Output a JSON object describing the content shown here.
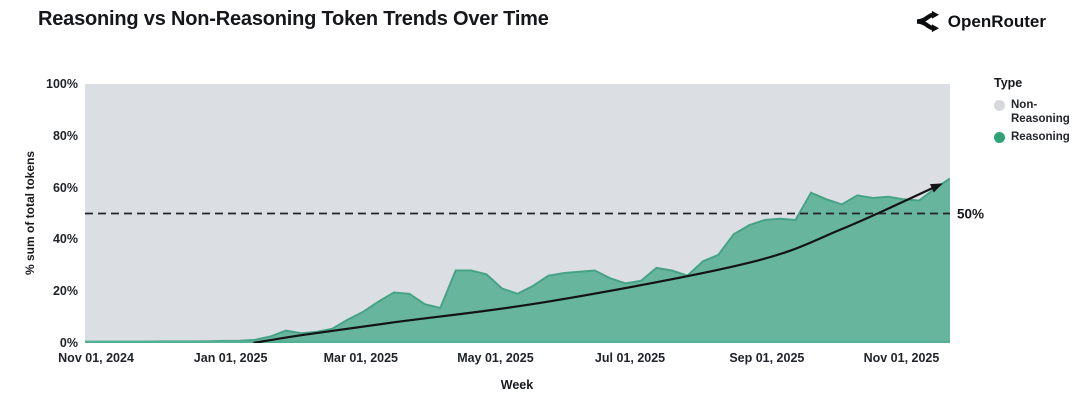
{
  "header": {
    "brand": "OpenRouter",
    "brand_icon": "openrouter-logo-icon"
  },
  "chart_data": {
    "type": "area",
    "title": "Reasoning vs Non-Reasoning Token Trends Over Time",
    "xlabel": "Week",
    "ylabel": "% sum of total tokens",
    "ylim": [
      0,
      100
    ],
    "y_ticks": [
      "0%",
      "20%",
      "40%",
      "60%",
      "80%",
      "100%"
    ],
    "y_tick_values": [
      0,
      20,
      40,
      60,
      80,
      100
    ],
    "x_ticks": [
      "Nov 01, 2024",
      "Jan 01, 2025",
      "Mar 01, 2025",
      "May 01, 2025",
      "Jul 01, 2025",
      "Sep 01, 2025",
      "Nov 01, 2025"
    ],
    "x_tick_day_offsets": [
      5,
      66,
      125,
      186,
      247,
      309,
      370
    ],
    "x_axis_total_days": 392,
    "grid": "off",
    "series": [
      {
        "name": "Reasoning",
        "unit": "% of total tokens",
        "interval": "weekly",
        "first_week": "Oct 27, 2024",
        "last_week": "Nov 23, 2025",
        "values": [
          0.5,
          0.5,
          0.5,
          0.5,
          0.5,
          0.6,
          0.6,
          0.6,
          0.7,
          0.8,
          0.9,
          1.2,
          2.5,
          4.8,
          3.8,
          4.3,
          5.5,
          9,
          12,
          16,
          19.5,
          19,
          15,
          13.5,
          28,
          28,
          26.5,
          21,
          19,
          22,
          26,
          27,
          27.5,
          28,
          25,
          23,
          24,
          29,
          28,
          26,
          31.5,
          34,
          42,
          45.5,
          47.5,
          48,
          47.5,
          58,
          55.5,
          53.5,
          57,
          56,
          56.5,
          55.5,
          55,
          59.5,
          63.5
        ]
      },
      {
        "name": "Non-Reasoning",
        "note": "remainder to 100%, shown as gray background"
      }
    ],
    "trend_line": {
      "description": "black smoothed trend curve with arrowhead",
      "points_week_value": [
        [
          10.9,
          0
        ],
        [
          14,
          3
        ],
        [
          20,
          8
        ],
        [
          30,
          16
        ],
        [
          43,
          31
        ],
        [
          49,
          44
        ],
        [
          55.3,
          61
        ]
      ]
    },
    "reference_line": {
      "value": 50,
      "label": "50%",
      "style": "dashed"
    },
    "legend": {
      "title": "Type",
      "position": "right",
      "items": [
        {
          "label": "Non-Reasoning",
          "color": "#D7D9DD"
        },
        {
          "label": "Reasoning",
          "color": "#2FA277"
        }
      ]
    },
    "colors": {
      "plot_bg": "#DBDEE3",
      "area_fill": "#68B59D",
      "area_stroke": "#46A385",
      "baseline": "#54B094",
      "trend": "#141414",
      "reference": "#22252a"
    }
  }
}
